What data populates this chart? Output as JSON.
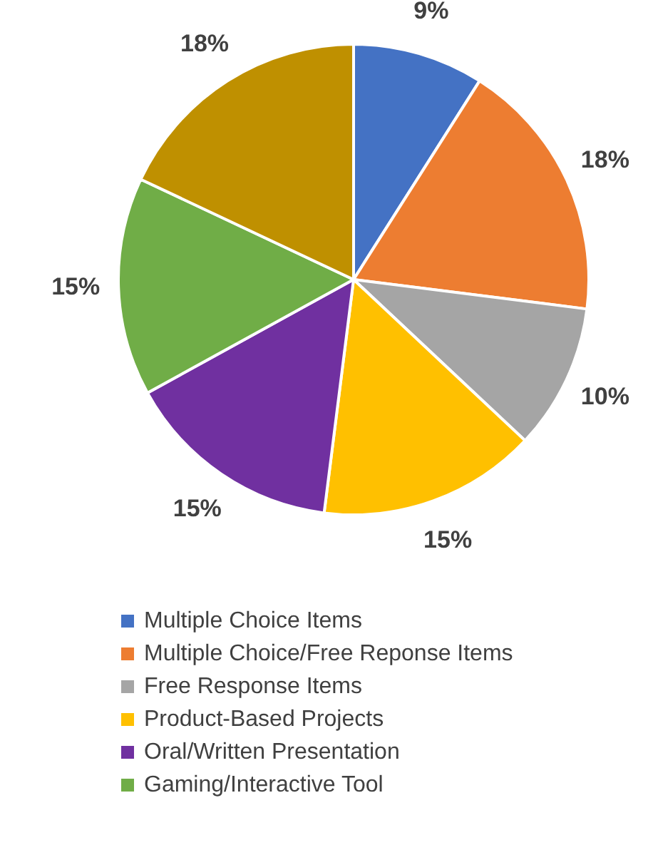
{
  "chart_data": {
    "type": "pie",
    "categories": [
      "Multiple Choice Items",
      "Multiple Choice/Free Reponse Items",
      "Free Response Items",
      "Product-Based Projects",
      "Oral/Written Presentation",
      "Gaming/Interactive Tool",
      null
    ],
    "values": [
      9,
      18,
      10,
      15,
      15,
      15,
      18
    ],
    "colors": [
      "#4472c4",
      "#ed7d31",
      "#a5a5a5",
      "#ffc000",
      "#7030a0",
      "#70ad47",
      "#bf9000"
    ],
    "value_labels": [
      "9%",
      "18%",
      "10%",
      "15%",
      "15%",
      "15%",
      "18%"
    ],
    "legend": "bottom"
  }
}
